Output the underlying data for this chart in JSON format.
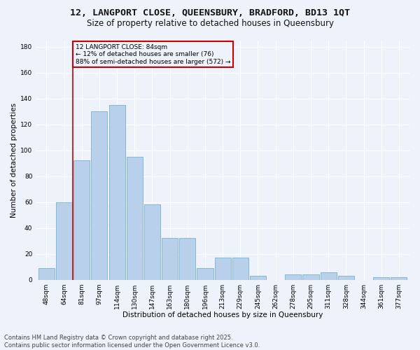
{
  "title1": "12, LANGPORT CLOSE, QUEENSBURY, BRADFORD, BD13 1QT",
  "title2": "Size of property relative to detached houses in Queensbury",
  "xlabel": "Distribution of detached houses by size in Queensbury",
  "ylabel": "Number of detached properties",
  "categories": [
    "48sqm",
    "64sqm",
    "81sqm",
    "97sqm",
    "114sqm",
    "130sqm",
    "147sqm",
    "163sqm",
    "180sqm",
    "196sqm",
    "213sqm",
    "229sqm",
    "245sqm",
    "262sqm",
    "278sqm",
    "295sqm",
    "311sqm",
    "328sqm",
    "344sqm",
    "361sqm",
    "377sqm"
  ],
  "values": [
    9,
    60,
    92,
    130,
    135,
    95,
    58,
    32,
    32,
    9,
    17,
    17,
    3,
    0,
    4,
    4,
    6,
    3,
    0,
    2,
    2
  ],
  "bar_color": "#b8d0ea",
  "bar_edge_color": "#7aafd4",
  "vline_x": 1.5,
  "vline_color": "#cc0000",
  "annotation_title": "12 LANGPORT CLOSE: 84sqm",
  "annotation_line2": "← 12% of detached houses are smaller (76)",
  "annotation_line3": "88% of semi-detached houses are larger (572) →",
  "annotation_box_color": "#cc0000",
  "annotation_text_color": "#000000",
  "ylim": [
    0,
    185
  ],
  "yticks": [
    0,
    20,
    40,
    60,
    80,
    100,
    120,
    140,
    160,
    180
  ],
  "bg_color": "#eef2fb",
  "footer1": "Contains HM Land Registry data © Crown copyright and database right 2025.",
  "footer2": "Contains public sector information licensed under the Open Government Licence v3.0.",
  "title_fontsize": 9.5,
  "subtitle_fontsize": 8.5,
  "axis_label_fontsize": 7.5,
  "tick_fontsize": 6.5,
  "footer_fontsize": 6.0,
  "annotation_fontsize": 6.5
}
